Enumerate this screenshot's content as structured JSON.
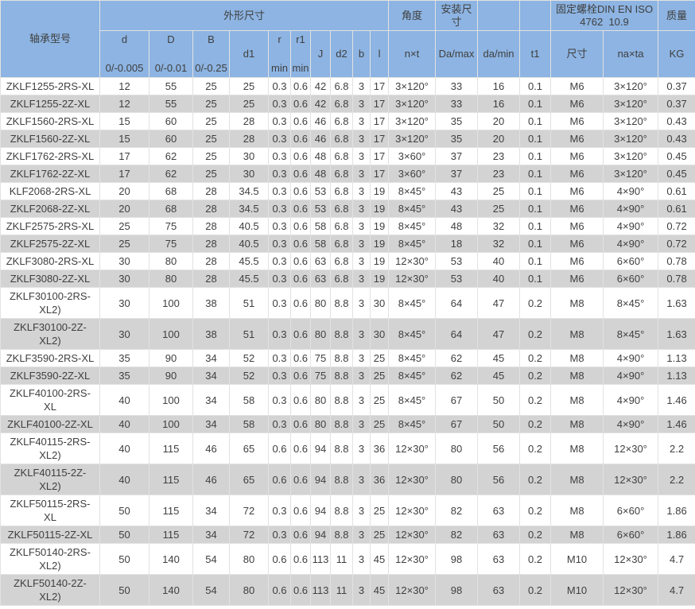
{
  "colors": {
    "header_bg": "#8db4e2",
    "row_bg": "#ffffff",
    "row_alt_bg": "#d3d3d3",
    "grid_line": "#e2e2e2",
    "text": "#3f3f3f"
  },
  "table": {
    "header": {
      "model": "轴承型号",
      "groups": {
        "dimensions": "外形尺寸",
        "angle": "角度",
        "mounting": "安装尺寸",
        "bolt_line1": "固定螺栓DIN EN ISO",
        "bolt_line2": "4762  10.9",
        "mass": "质量"
      },
      "columns": [
        {
          "key": "d",
          "top": "d",
          "bottom": "0/-0.005"
        },
        {
          "key": "D",
          "top": "D",
          "bottom": "0/-0.01"
        },
        {
          "key": "B",
          "top": "B",
          "bottom": "0/-0.25"
        },
        {
          "key": "d1",
          "top": "d1"
        },
        {
          "key": "r",
          "top": "r",
          "bottom": "min"
        },
        {
          "key": "r1",
          "top": "r1",
          "bottom": "min"
        },
        {
          "key": "J",
          "top": "J"
        },
        {
          "key": "d2",
          "top": "d2"
        },
        {
          "key": "b",
          "top": "b"
        },
        {
          "key": "l",
          "top": "l"
        },
        {
          "key": "nxt",
          "top": "n×t"
        },
        {
          "key": "da-max",
          "top": "Da/max"
        },
        {
          "key": "da-min",
          "top": "da/min"
        },
        {
          "key": "t1",
          "top": "t1"
        },
        {
          "key": "bolt-size",
          "top": "尺寸"
        },
        {
          "key": "naxta",
          "top": "na×ta"
        },
        {
          "key": "kg",
          "top": "KG"
        }
      ]
    },
    "rows": [
      [
        "ZKLF1255-2RS-XL",
        "12",
        "55",
        "25",
        "25",
        "0.3",
        "0.6",
        "42",
        "6.8",
        "3",
        "17",
        "3×120°",
        "33",
        "16",
        "0.1",
        "M6",
        "3×120°",
        "0.37"
      ],
      [
        "ZKLF1255-2Z-XL",
        "12",
        "55",
        "25",
        "25",
        "0.3",
        "0.6",
        "42",
        "6.8",
        "3",
        "17",
        "3×120°",
        "33",
        "16",
        "0.1",
        "M6",
        "3×120°",
        "0.37"
      ],
      [
        "ZKLF1560-2RS-XL",
        "15",
        "60",
        "25",
        "28",
        "0.3",
        "0.6",
        "46",
        "6.8",
        "3",
        "17",
        "3×120°",
        "35",
        "20",
        "0.1",
        "M6",
        "3×120°",
        "0.43"
      ],
      [
        "ZKLF1560-2Z-XL",
        "15",
        "60",
        "25",
        "28",
        "0.3",
        "0.6",
        "46",
        "6.8",
        "3",
        "17",
        "3×120°",
        "35",
        "20",
        "0.1",
        "M6",
        "3×120°",
        "0.43"
      ],
      [
        "ZKLF1762-2RS-XL",
        "17",
        "62",
        "25",
        "30",
        "0.3",
        "0.6",
        "48",
        "6.8",
        "3",
        "17",
        "3×60°",
        "37",
        "23",
        "0.1",
        "M6",
        "3×120°",
        "0.45"
      ],
      [
        "ZKLF1762-2Z-XL",
        "17",
        "62",
        "25",
        "30",
        "0.3",
        "0.6",
        "48",
        "6.8",
        "3",
        "17",
        "3×60°",
        "37",
        "23",
        "0.1",
        "M6",
        "3×120°",
        "0.45"
      ],
      [
        "KLF2068-2RS-XL",
        "20",
        "68",
        "28",
        "34.5",
        "0.3",
        "0.6",
        "53",
        "6.8",
        "3",
        "19",
        "8×45°",
        "43",
        "25",
        "0.1",
        "M6",
        "4×90°",
        "0.61"
      ],
      [
        "ZKLF2068-2Z-XL",
        "20",
        "68",
        "28",
        "34.5",
        "0.3",
        "0.6",
        "53",
        "6.8",
        "3",
        "19",
        "8×45°",
        "43",
        "25",
        "0.1",
        "M6",
        "4×90°",
        "0.61"
      ],
      [
        "ZKLF2575-2RS-XL",
        "25",
        "75",
        "28",
        "40.5",
        "0.3",
        "0.6",
        "58",
        "6.8",
        "3",
        "19",
        "8×45°",
        "48",
        "32",
        "0.1",
        "M6",
        "4×90°",
        "0.72"
      ],
      [
        "ZKLF2575-2Z-XL",
        "25",
        "75",
        "28",
        "40.5",
        "0.3",
        "0.6",
        "58",
        "6.8",
        "3",
        "19",
        "8×45°",
        "18",
        "32",
        "0.1",
        "M6",
        "4×90°",
        "0.72"
      ],
      [
        "ZKLF3080-2RS-XL",
        "30",
        "80",
        "28",
        "45.5",
        "0.3",
        "0.6",
        "63",
        "6.8",
        "3",
        "19",
        "12×30°",
        "53",
        "40",
        "0.1",
        "M6",
        "6×60°",
        "0.78"
      ],
      [
        "ZKLF3080-2Z-XL",
        "30",
        "80",
        "28",
        "45.5",
        "0.3",
        "0.6",
        "63",
        "6.8",
        "3",
        "19",
        "12×30°",
        "53",
        "40",
        "0.1",
        "M6",
        "6×60°",
        "0.78"
      ],
      [
        "ZKLF30100-2RS-XL2)",
        "30",
        "100",
        "38",
        "51",
        "0.3",
        "0.6",
        "80",
        "8.8",
        "3",
        "30",
        "8×45°",
        "64",
        "47",
        "0.2",
        "M8",
        "8×45°",
        "1.63"
      ],
      [
        "ZKLF30100-2Z-XL2)",
        "30",
        "100",
        "38",
        "51",
        "0.3",
        "0.6",
        "80",
        "8.8",
        "3",
        "30",
        "8×45°",
        "64",
        "47",
        "0.2",
        "M8",
        "8×45°",
        "1.63"
      ],
      [
        "ZKLF3590-2RS-XL",
        "35",
        "90",
        "34",
        "52",
        "0.3",
        "0.6",
        "75",
        "8.8",
        "3",
        "25",
        "8×45°",
        "62",
        "45",
        "0.2",
        "M8",
        "4×90°",
        "1.13"
      ],
      [
        "ZKLF3590-2Z-XL",
        "35",
        "90",
        "34",
        "52",
        "0.3",
        "0.6",
        "75",
        "8.8",
        "3",
        "25",
        "8×45°",
        "62",
        "45",
        "0.2",
        "M8",
        "4×90°",
        "1.13"
      ],
      [
        "ZKLF40100-2RS-XL",
        "40",
        "100",
        "34",
        "58",
        "0.3",
        "0.6",
        "80",
        "8.8",
        "3",
        "25",
        "8×45°",
        "67",
        "50",
        "0.2",
        "M8",
        "4×90°",
        "1.46"
      ],
      [
        "ZKLF40100-2Z-XL",
        "40",
        "100",
        "34",
        "58",
        "0.3",
        "0.6",
        "80",
        "8.8",
        "3",
        "25",
        "8×45°",
        "67",
        "50",
        "0.2",
        "M8",
        "4×90°",
        "1.46"
      ],
      [
        "ZKLF40115-2RS-XL2)",
        "40",
        "115",
        "46",
        "65",
        "0.6",
        "0.6",
        "94",
        "8.8",
        "3",
        "36",
        "12×30°",
        "80",
        "56",
        "0.2",
        "M8",
        "12×30°",
        "2.2"
      ],
      [
        "ZKLF40115-2Z-XL2)",
        "40",
        "115",
        "46",
        "65",
        "0.6",
        "0.6",
        "94",
        "8.8",
        "3",
        "36",
        "12×30°",
        "80",
        "56",
        "0.2",
        "M8",
        "12×30°",
        "2.2"
      ],
      [
        "ZKLF50115-2RS-XL",
        "50",
        "115",
        "34",
        "72",
        "0.3",
        "0.6",
        "94",
        "8.8",
        "3",
        "25",
        "12×30°",
        "82",
        "63",
        "0.2",
        "M8",
        "6×60°",
        "1.86"
      ],
      [
        "ZKLF50115-2Z-XL",
        "50",
        "115",
        "34",
        "72",
        "0.3",
        "0.6",
        "94",
        "8.8",
        "3",
        "25",
        "12×30°",
        "82",
        "63",
        "0.2",
        "M8",
        "6×60°",
        "1.86"
      ],
      [
        "ZKLF50140-2RS-XL2)",
        "50",
        "140",
        "54",
        "80",
        "0.6",
        "0.6",
        "113",
        "11",
        "3",
        "45",
        "12×30°",
        "98",
        "63",
        "0.2",
        "M10",
        "12×30°",
        "4.7"
      ],
      [
        "ZKLF50140-2Z-XL2)",
        "50",
        "140",
        "54",
        "80",
        "0.6",
        "0.6",
        "113",
        "11",
        "3",
        "45",
        "12×30°",
        "98",
        "63",
        "0.2",
        "M10",
        "12×30°",
        "4.7"
      ]
    ]
  }
}
